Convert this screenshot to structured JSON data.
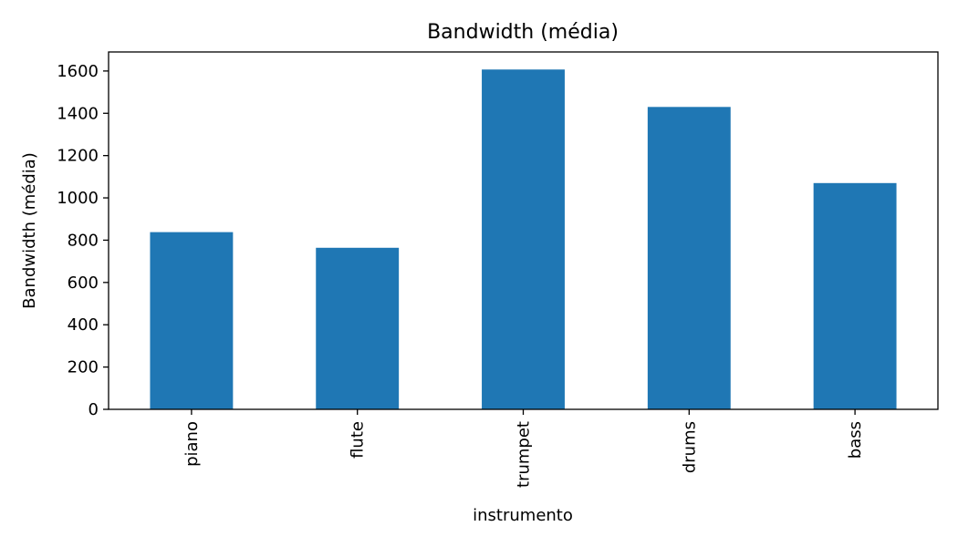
{
  "chart_data": {
    "type": "bar",
    "title": "Bandwidth (média)",
    "xlabel": "instrumento",
    "ylabel": "Bandwidth (média)",
    "categories": [
      "piano",
      "flute",
      "trumpet",
      "drums",
      "bass"
    ],
    "values": [
      838,
      764,
      1607,
      1430,
      1070
    ],
    "ylim": [
      0,
      1690
    ],
    "yticks": [
      0,
      200,
      400,
      600,
      800,
      1000,
      1200,
      1400,
      1600
    ],
    "grid": false,
    "legend": "none",
    "bar_color": "#1f77b4",
    "tick_label_rotation": "vertical"
  }
}
